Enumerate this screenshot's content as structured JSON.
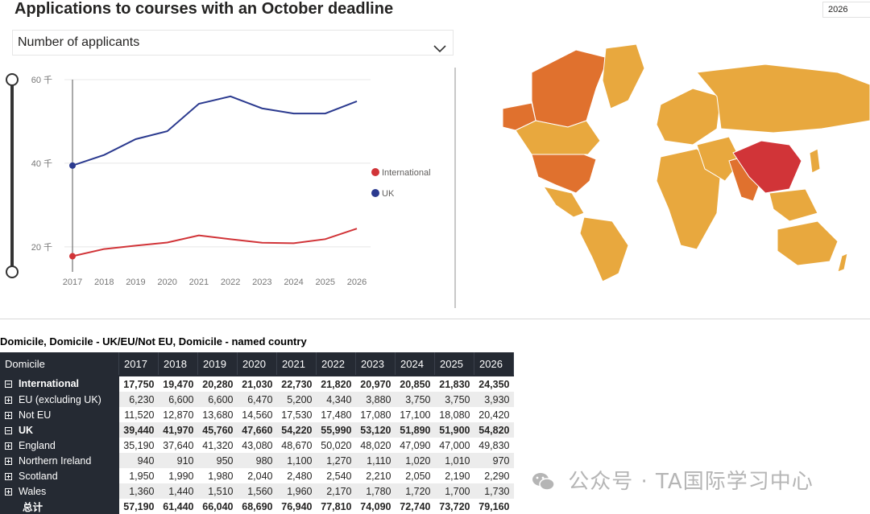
{
  "header": {
    "title": "Applications to courses with an October deadline",
    "year_slicer": "2026"
  },
  "dropdown": {
    "selected": "Number of applicants"
  },
  "chart_data": {
    "type": "line",
    "x": [
      "2017",
      "2018",
      "2019",
      "2020",
      "2021",
      "2022",
      "2023",
      "2024",
      "2025",
      "2026"
    ],
    "ylim": [
      14000,
      60000
    ],
    "yticks": [
      20000,
      40000,
      60000
    ],
    "ytick_labels": [
      "20 千",
      "40 千",
      "60 千"
    ],
    "legend_position": "right",
    "series": [
      {
        "name": "International",
        "color": "#d13438",
        "values": [
          17750,
          19470,
          20280,
          21030,
          22730,
          21820,
          20970,
          20850,
          21830,
          24350
        ]
      },
      {
        "name": "UK",
        "color": "#2b3a8f",
        "values": [
          39440,
          41970,
          45760,
          47660,
          54220,
          55990,
          53120,
          51890,
          51900,
          54820
        ]
      }
    ]
  },
  "map": {
    "highlight_color": "#d13438",
    "mid_color": "#e0712e",
    "base_color": "#e8a83e"
  },
  "table": {
    "title": "Domicile, Domicile - UK/EU/Not EU, Domicile - named country",
    "header_col": "Domicile",
    "years": [
      "2017",
      "2018",
      "2019",
      "2020",
      "2021",
      "2022",
      "2023",
      "2024",
      "2025",
      "2026"
    ],
    "rows": [
      {
        "label": "International",
        "type": "group",
        "values": [
          "17,750",
          "19,470",
          "20,280",
          "21,030",
          "22,730",
          "21,820",
          "20,970",
          "20,850",
          "21,830",
          "24,350"
        ]
      },
      {
        "label": "EU (excluding UK)",
        "type": "child",
        "values": [
          "6,230",
          "6,600",
          "6,600",
          "6,470",
          "5,200",
          "4,340",
          "3,880",
          "3,750",
          "3,750",
          "3,930"
        ]
      },
      {
        "label": "Not EU",
        "type": "child",
        "values": [
          "11,520",
          "12,870",
          "13,680",
          "14,560",
          "17,530",
          "17,480",
          "17,080",
          "17,100",
          "18,080",
          "20,420"
        ]
      },
      {
        "label": "UK",
        "type": "group",
        "values": [
          "39,440",
          "41,970",
          "45,760",
          "47,660",
          "54,220",
          "55,990",
          "53,120",
          "51,890",
          "51,900",
          "54,820"
        ]
      },
      {
        "label": "England",
        "type": "child",
        "values": [
          "35,190",
          "37,640",
          "41,320",
          "43,080",
          "48,670",
          "50,020",
          "48,020",
          "47,090",
          "47,000",
          "49,830"
        ]
      },
      {
        "label": "Northern Ireland",
        "type": "child",
        "values": [
          "940",
          "910",
          "950",
          "980",
          "1,100",
          "1,270",
          "1,110",
          "1,020",
          "1,010",
          "970"
        ]
      },
      {
        "label": "Scotland",
        "type": "child",
        "values": [
          "1,950",
          "1,990",
          "1,980",
          "2,040",
          "2,480",
          "2,540",
          "2,210",
          "2,050",
          "2,190",
          "2,290"
        ]
      },
      {
        "label": "Wales",
        "type": "child",
        "values": [
          "1,360",
          "1,440",
          "1,510",
          "1,560",
          "1,960",
          "2,170",
          "1,780",
          "1,720",
          "1,700",
          "1,730"
        ]
      },
      {
        "label": "总计",
        "type": "total",
        "values": [
          "57,190",
          "61,440",
          "66,040",
          "68,690",
          "76,940",
          "77,810",
          "74,090",
          "72,740",
          "73,720",
          "79,160"
        ]
      }
    ]
  },
  "watermark": {
    "text": "公众号 · TA国际学习中心"
  }
}
